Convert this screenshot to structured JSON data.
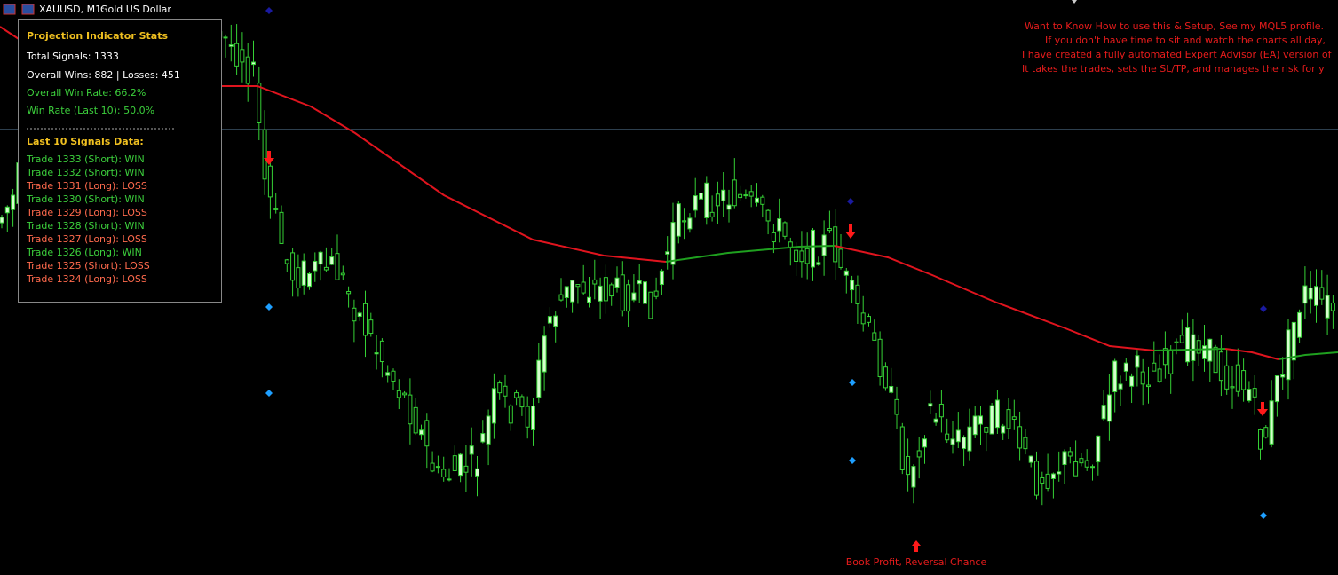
{
  "header": {
    "symbol": "XAUUSD, M1:",
    "description": "Gold US Dollar"
  },
  "stats_panel": {
    "title": "Projection Indicator Stats",
    "total_signals": "Total Signals: 1333",
    "overall": "Overall Wins: 882 | Losses: 451",
    "win_rate": "Overall Win Rate: 66.2%",
    "win_rate_last10": "Win Rate (Last 10): 50.0%",
    "section_title": "Last 10 Signals Data:",
    "signals": [
      {
        "text": "Trade 1333 (Short): WIN",
        "color": "#3ccf3c"
      },
      {
        "text": "Trade 1332 (Short): WIN",
        "color": "#3ccf3c"
      },
      {
        "text": "Trade 1331 (Long): LOSS",
        "color": "#ff6a4d"
      },
      {
        "text": "Trade 1330 (Short): WIN",
        "color": "#3ccf3c"
      },
      {
        "text": "Trade 1329 (Long): LOSS",
        "color": "#ff6a4d"
      },
      {
        "text": "Trade 1328 (Short): WIN",
        "color": "#3ccf3c"
      },
      {
        "text": "Trade 1327 (Long): LOSS",
        "color": "#ff6a4d"
      },
      {
        "text": "Trade 1326 (Long): WIN",
        "color": "#3ccf3c"
      },
      {
        "text": "Trade 1325 (Short): LOSS",
        "color": "#ff6a4d"
      },
      {
        "text": "Trade 1324 (Long): LOSS",
        "color": "#ff6a4d"
      }
    ]
  },
  "promo": {
    "lines": [
      "Want to Know How to use this & Setup, See my MQL5 profile.",
      "If you don't have time to sit and watch the charts all day,",
      "I have created a fully automated Expert Advisor (EA) version of",
      "It takes the trades, sets the SL/TP, and manages the risk for y"
    ]
  },
  "annotation": "Book Profit, Reversal Chance"
}
